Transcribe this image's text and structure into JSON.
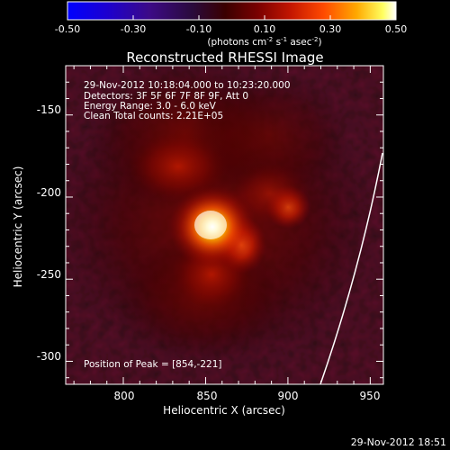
{
  "colorbar": {
    "tick_labels": [
      "-0.50",
      "-0.30",
      "-0.10",
      "0.10",
      "0.30",
      "0.50"
    ],
    "tick_values": [
      -0.5,
      -0.3,
      -0.1,
      0.1,
      0.3,
      0.5
    ],
    "range": [
      -0.5,
      0.5
    ],
    "unit_label": "(photons cm",
    "unit_exp1": "-2",
    "unit_mid": " s",
    "unit_exp2": "-1",
    "unit_end": " asec",
    "unit_exp3": "-2",
    "unit_close": ")",
    "colors": [
      "#0000ff",
      "#1a00c8",
      "#3a0a8a",
      "#2a0a40",
      "#3a0000",
      "#7a0000",
      "#c81400",
      "#ff4800",
      "#ffa000",
      "#ffff50",
      "#ffffff"
    ]
  },
  "image": {
    "title": "Reconstructed RHESSI Image",
    "info_lines": [
      "29-Nov-2012 10:18:04.000 to 10:23:20.000",
      "Detectors: 3F 5F 6F 7F 8F 9F, Att 0",
      "Energy Range: 3.0 - 6.0 keV",
      "Clean     Total counts: 2.21E+05"
    ],
    "peak_text": "Position of Peak = [854,-221]",
    "peak_position": [
      854,
      -221
    ],
    "x_label": "Heliocentric X (arcsec)",
    "y_label": "Heliocentric Y (arcsec)",
    "x_ticks": [
      "800",
      "850",
      "900",
      "950"
    ],
    "x_tick_values": [
      800,
      850,
      900,
      950
    ],
    "y_ticks": [
      "-150",
      "-200",
      "-250",
      "-300"
    ],
    "y_tick_values": [
      -150,
      -200,
      -250,
      -300
    ],
    "x_range": [
      765,
      958
    ],
    "y_range": [
      -314,
      -120
    ],
    "sources": [
      {
        "x": 854,
        "y": -221,
        "intensity": 1.0
      },
      {
        "x": 901,
        "y": -209,
        "intensity": 0.35
      },
      {
        "x": 866,
        "y": -236,
        "intensity": 0.45
      },
      {
        "x": 862,
        "y": -262,
        "intensity": 0.32
      },
      {
        "x": 835,
        "y": -181,
        "intensity": 0.22
      }
    ]
  },
  "footer": {
    "timestamp": "29-Nov-2012 18:51"
  }
}
